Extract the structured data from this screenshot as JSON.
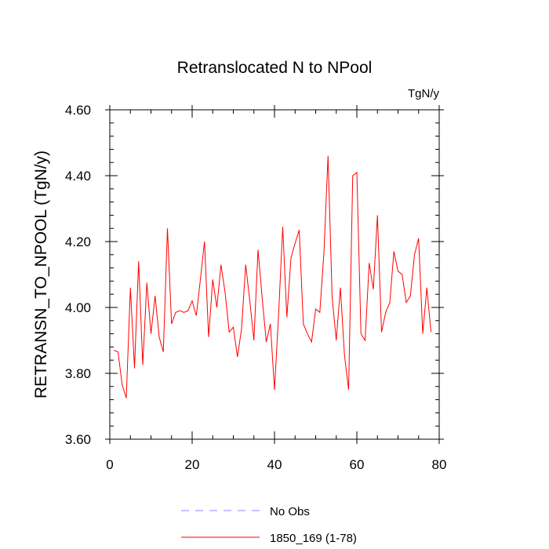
{
  "chart_data": {
    "type": "line",
    "title": "Retranslocated N to NPool",
    "units_label": "TgN/y",
    "ylabel": "RETRANSN_TO_NPOOL  (TgN/y)",
    "xlabel": "",
    "xlim": [
      0,
      80
    ],
    "ylim": [
      3.6,
      4.6
    ],
    "x_ticks": [
      "0",
      "20",
      "40",
      "60",
      "80"
    ],
    "x_tick_values": [
      0,
      20,
      40,
      60,
      80
    ],
    "y_ticks": [
      "3.60",
      "3.80",
      "4.00",
      "4.20",
      "4.40",
      "4.60"
    ],
    "y_tick_values": [
      3.6,
      3.8,
      4.0,
      4.2,
      4.4,
      4.6
    ],
    "grid": false,
    "legend": [
      {
        "label": "No Obs",
        "color": "#8a8aff",
        "style": "dashed"
      },
      {
        "label": "1850_169 (1-78)",
        "color": "#ff0000",
        "style": "solid"
      }
    ],
    "series": [
      {
        "name": "1850_169 (1-78)",
        "color": "#ff0000",
        "x": [
          1,
          2,
          3,
          4,
          5,
          6,
          7,
          8,
          9,
          10,
          11,
          12,
          13,
          14,
          15,
          16,
          17,
          18,
          19,
          20,
          21,
          22,
          23,
          24,
          25,
          26,
          27,
          28,
          29,
          30,
          31,
          32,
          33,
          34,
          35,
          36,
          37,
          38,
          39,
          40,
          41,
          42,
          43,
          44,
          45,
          46,
          47,
          48,
          49,
          50,
          51,
          52,
          53,
          54,
          55,
          56,
          57,
          58,
          59,
          60,
          61,
          62,
          63,
          64,
          65,
          66,
          67,
          68,
          69,
          70,
          71,
          72,
          73,
          74,
          75,
          76,
          77,
          78
        ],
        "values": [
          3.87,
          3.865,
          3.765,
          3.725,
          4.06,
          3.815,
          4.14,
          3.825,
          4.075,
          3.92,
          4.035,
          3.91,
          3.865,
          4.24,
          3.95,
          3.985,
          3.99,
          3.985,
          3.99,
          4.02,
          3.975,
          4.085,
          4.2,
          3.91,
          4.085,
          4.0,
          4.13,
          4.045,
          3.925,
          3.94,
          3.85,
          3.935,
          4.13,
          4.02,
          3.9,
          4.175,
          4.03,
          3.895,
          3.95,
          3.75,
          3.98,
          4.245,
          3.97,
          4.15,
          4.195,
          4.235,
          3.95,
          3.92,
          3.895,
          3.995,
          3.985,
          4.165,
          4.46,
          4.03,
          3.9,
          4.06,
          3.855,
          3.75,
          4.4,
          4.41,
          3.92,
          3.9,
          4.135,
          4.055,
          4.28,
          3.925,
          3.985,
          4.015,
          4.17,
          4.11,
          4.1,
          4.015,
          4.035,
          4.16,
          4.21,
          3.92,
          4.06,
          3.925
        ]
      }
    ]
  }
}
